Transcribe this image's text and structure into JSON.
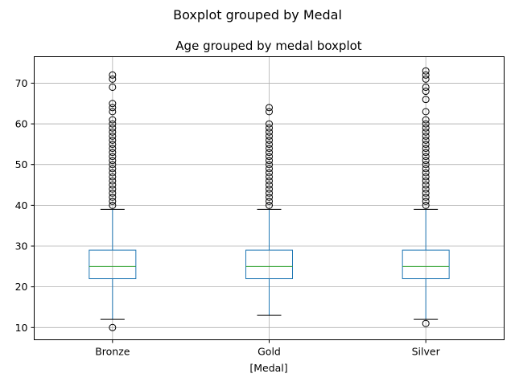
{
  "chart_data": {
    "type": "boxplot",
    "suptitle": "Boxplot grouped by Medal",
    "title": "Age grouped by medal boxplot",
    "xlabel": "[Medal]",
    "ylabel": "",
    "ylim": [
      7,
      76.5
    ],
    "yticks": [
      10,
      20,
      30,
      40,
      50,
      60,
      70
    ],
    "grid": true,
    "colors": {
      "box": "#1f77b4",
      "median": "#2ca02c",
      "whisker": "#1f77b4",
      "cap": "#000000",
      "flier": "#000000",
      "grid": "#b0b0b0"
    },
    "categories": [
      "Bronze",
      "Gold",
      "Silver"
    ],
    "boxes": [
      {
        "name": "Bronze",
        "whislo": 12,
        "q1": 22,
        "median": 25,
        "q3": 29,
        "whishi": 39,
        "fliers": [
          10,
          40,
          41,
          42,
          43,
          44,
          45,
          46,
          47,
          48,
          49,
          50,
          51,
          52,
          53,
          54,
          55,
          56,
          57,
          58,
          59,
          60,
          61,
          63,
          64,
          65,
          69,
          71,
          72
        ]
      },
      {
        "name": "Gold",
        "whislo": 13,
        "q1": 22,
        "median": 25,
        "q3": 29,
        "whishi": 39,
        "fliers": [
          40,
          41,
          42,
          43,
          44,
          45,
          46,
          47,
          48,
          49,
          50,
          51,
          52,
          53,
          54,
          55,
          56,
          57,
          58,
          59,
          60,
          63,
          64
        ]
      },
      {
        "name": "Silver",
        "whislo": 12,
        "q1": 22,
        "median": 25,
        "q3": 29,
        "whishi": 39,
        "fliers": [
          11,
          40,
          41,
          42,
          43,
          44,
          45,
          46,
          47,
          48,
          49,
          50,
          51,
          52,
          53,
          54,
          55,
          56,
          57,
          58,
          59,
          60,
          61,
          63,
          66,
          68,
          69,
          71,
          72,
          73
        ]
      }
    ]
  }
}
